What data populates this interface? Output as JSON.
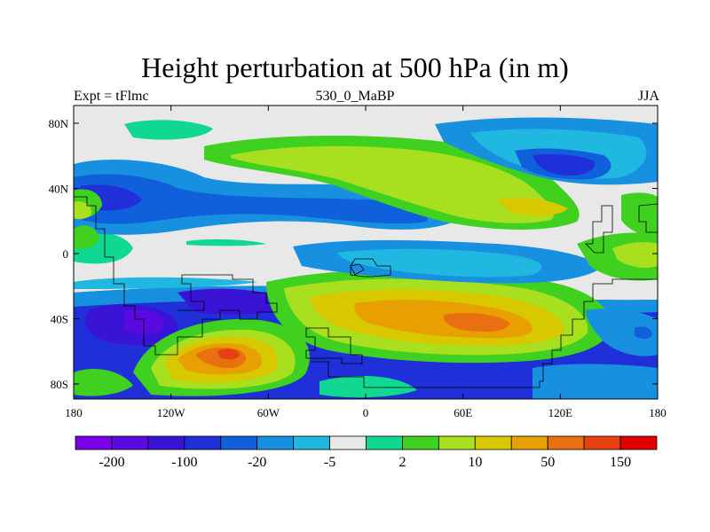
{
  "chart_data": {
    "type": "heatmap",
    "title": "Height perturbation at 500 hPa (in m)",
    "subtitle_left": "Expt = tFlmc",
    "subtitle_center": "530_0_MaBP",
    "subtitle_right": "JJA",
    "x_ticks": [
      "180",
      "120W",
      "60W",
      "0",
      "60E",
      "120E",
      "180"
    ],
    "y_ticks": [
      "80N",
      "40N",
      "0",
      "40S",
      "80S"
    ],
    "colorbar": {
      "colors": [
        "#7a00e8",
        "#5a0ae0",
        "#3a14d6",
        "#2030d8",
        "#1060dc",
        "#1890e0",
        "#20b8e0",
        "#e8e8e8",
        "#10d890",
        "#40d020",
        "#a8e020",
        "#d8c800",
        "#e8a000",
        "#e87010",
        "#e84010",
        "#e00000"
      ],
      "labels": [
        {
          "text": "-200",
          "boundary": 1
        },
        {
          "text": "-100",
          "boundary": 3
        },
        {
          "text": "-20",
          "boundary": 5
        },
        {
          "text": "-5",
          "boundary": 7
        },
        {
          "text": "2",
          "boundary": 9
        },
        {
          "text": "10",
          "boundary": 11
        },
        {
          "text": "50",
          "boundary": 13
        },
        {
          "text": "150",
          "boundary": 15
        }
      ]
    }
  }
}
